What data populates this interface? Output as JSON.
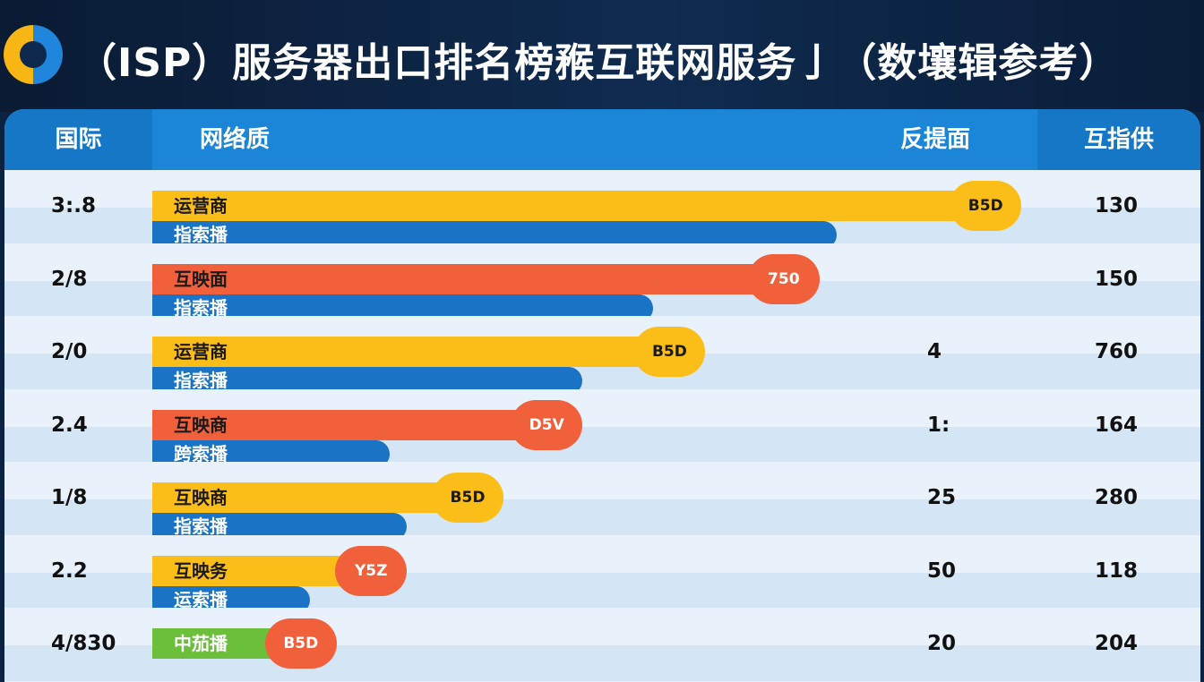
{
  "title": "（ISP）服务器出口排名榜䂉互联网服务⼅（数壤辑参考）",
  "colors": {
    "yellow": "#fbbd17",
    "red": "#f0603a",
    "blue": "#1a73c4",
    "green": "#6cbf3a",
    "header": "#1b86d8"
  },
  "logo_icon": "ring-logo-icon",
  "chart_data": {
    "type": "bar",
    "orientation": "horizontal",
    "title": "（ISP）服务器出口排名榜䂉互联网服务⼅（数壤辑参考）",
    "columns": [
      "国际",
      "网络质",
      "反提面",
      "互指供"
    ],
    "value_unit": "percent of track",
    "rows": [
      {
        "rank_value": "3:.8",
        "top_label": "运营商",
        "top_color": "yellow",
        "top_value": 99,
        "badge": "B5D",
        "bottom_label": "指索播",
        "bottom_value": 78,
        "col3": "",
        "col4": "130"
      },
      {
        "rank_value": "2/8",
        "top_label": "互映面",
        "top_color": "red",
        "top_value": 76,
        "badge": "750",
        "bottom_label": "指索播",
        "bottom_value": 57,
        "col3": "",
        "col4": "150"
      },
      {
        "rank_value": "2/0",
        "top_label": "运营商",
        "top_color": "yellow",
        "top_value": 63,
        "badge": "B5D",
        "bottom_label": "指索播",
        "bottom_value": 49,
        "col3": "4",
        "col4": "760"
      },
      {
        "rank_value": "2.4",
        "top_label": "互映商",
        "top_color": "red",
        "top_value": 49,
        "badge": "D5V",
        "bottom_label": "跨索播",
        "bottom_value": 27,
        "col3": "1:",
        "col4": "164"
      },
      {
        "rank_value": "1/8",
        "top_label": "互映商",
        "top_color": "yellow",
        "top_value": 40,
        "badge": "B5D",
        "bottom_label": "指索播",
        "bottom_value": 29,
        "col3": "25",
        "col4": "280"
      },
      {
        "rank_value": "2.2",
        "top_label": "互映务",
        "top_color": "yellow",
        "top_value": 29,
        "badge": "Y5Z",
        "badge_color": "red",
        "bottom_label": "运索播",
        "bottom_value": 18,
        "col3": "50",
        "col4": "118"
      },
      {
        "rank_value": "4/830",
        "top_label": "中茄播",
        "top_color": "green",
        "top_value": 21,
        "badge": "B5D",
        "badge_color": "red",
        "bottom_label": "",
        "bottom_value": null,
        "col3": "20",
        "col4": "204"
      }
    ]
  }
}
